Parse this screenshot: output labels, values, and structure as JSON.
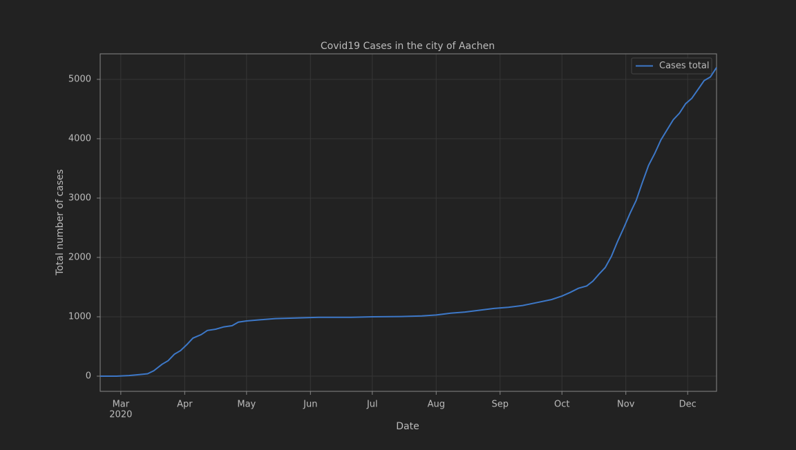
{
  "chart_data": {
    "type": "line",
    "title": "Covid19 Cases in the city of Aachen",
    "xlabel": "Date",
    "ylabel": "Total number of cases",
    "x": [
      "2020-02-20",
      "2020-02-28",
      "2020-03-05",
      "2020-03-10",
      "2020-03-14",
      "2020-03-17",
      "2020-03-21",
      "2020-03-24",
      "2020-03-27",
      "2020-03-30",
      "2020-04-02",
      "2020-04-05",
      "2020-04-09",
      "2020-04-12",
      "2020-04-16",
      "2020-04-20",
      "2020-04-24",
      "2020-04-27",
      "2020-05-01",
      "2020-05-08",
      "2020-05-15",
      "2020-05-25",
      "2020-06-05",
      "2020-06-20",
      "2020-07-01",
      "2020-07-15",
      "2020-07-25",
      "2020-08-01",
      "2020-08-08",
      "2020-08-15",
      "2020-08-22",
      "2020-08-29",
      "2020-09-05",
      "2020-09-12",
      "2020-09-19",
      "2020-09-26",
      "2020-10-01",
      "2020-10-05",
      "2020-10-09",
      "2020-10-13",
      "2020-10-16",
      "2020-10-19",
      "2020-10-22",
      "2020-10-25",
      "2020-10-28",
      "2020-10-31",
      "2020-11-03",
      "2020-11-06",
      "2020-11-09",
      "2020-11-12",
      "2020-11-15",
      "2020-11-18",
      "2020-11-21",
      "2020-11-24",
      "2020-11-27",
      "2020-11-30",
      "2020-12-03",
      "2020-12-06",
      "2020-12-09",
      "2020-12-12",
      "2020-12-15"
    ],
    "series": [
      {
        "name": "Cases total",
        "color": "#3d78c8",
        "values": [
          0,
          0,
          10,
          25,
          40,
          90,
          200,
          260,
          370,
          430,
          530,
          640,
          700,
          770,
          790,
          830,
          850,
          910,
          930,
          950,
          970,
          980,
          990,
          990,
          1000,
          1005,
          1015,
          1030,
          1060,
          1080,
          1110,
          1140,
          1160,
          1190,
          1240,
          1290,
          1350,
          1410,
          1480,
          1520,
          1600,
          1720,
          1830,
          2020,
          2270,
          2500,
          2740,
          2960,
          3260,
          3550,
          3750,
          3980,
          4150,
          4320,
          4430,
          4590,
          4680,
          4830,
          4980,
          5040,
          5200
        ]
      }
    ],
    "xlim": [
      "2020-02-20",
      "2020-12-15"
    ],
    "xticks": [
      {
        "value": "2020-03-01",
        "label": "Mar"
      },
      {
        "value": "2020-04-01",
        "label": "Apr"
      },
      {
        "value": "2020-05-01",
        "label": "May"
      },
      {
        "value": "2020-06-01",
        "label": "Jun"
      },
      {
        "value": "2020-07-01",
        "label": "Jul"
      },
      {
        "value": "2020-08-01",
        "label": "Aug"
      },
      {
        "value": "2020-09-01",
        "label": "Sep"
      },
      {
        "value": "2020-10-01",
        "label": "Oct"
      },
      {
        "value": "2020-11-01",
        "label": "Nov"
      },
      {
        "value": "2020-12-01",
        "label": "Dec"
      }
    ],
    "xtick_year": "2020",
    "ylim": [
      -256,
      5430
    ],
    "yticks": [
      0,
      1000,
      2000,
      3000,
      4000,
      5000
    ],
    "grid": true,
    "legend": "upper right"
  }
}
